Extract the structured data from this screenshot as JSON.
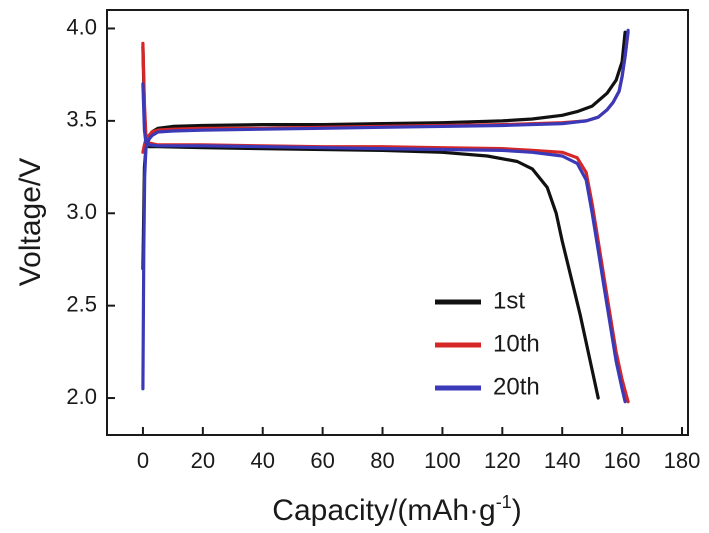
{
  "chart_data": {
    "type": "line",
    "xlabel": "Capacity/(mAh·g",
    "xlabel_sup": "-1",
    "xlabel_close": ")",
    "ylabel": "Voltage/V",
    "xlim": [
      -12,
      182
    ],
    "ylim": [
      1.8,
      4.1
    ],
    "x_ticks": [
      0,
      20,
      40,
      60,
      80,
      100,
      120,
      140,
      160,
      180
    ],
    "x_tick_labels": [
      "0",
      "20",
      "40",
      "60",
      "80",
      "100",
      "120",
      "140",
      "160",
      "180"
    ],
    "y_ticks": [
      2.0,
      2.5,
      3.0,
      3.5,
      4.0
    ],
    "y_tick_labels": [
      "2.0",
      "2.5",
      "3.0",
      "3.5",
      "4.0"
    ],
    "grid": false,
    "legend_position": "bottom-right",
    "series": [
      {
        "name": "1st",
        "color": "#111111",
        "segments": [
          {
            "phase": "charge",
            "x": [
              0,
              0.5,
              1,
              2,
              3,
              5,
              10,
              20,
              40,
              60,
              80,
              100,
              120,
              130,
              140,
              145,
              150,
              155,
              158,
              160,
              161
            ],
            "y": [
              2.7,
              3.25,
              3.35,
              3.4,
              3.44,
              3.46,
              3.47,
              3.475,
              3.48,
              3.48,
              3.485,
              3.49,
              3.5,
              3.51,
              3.53,
              3.55,
              3.58,
              3.65,
              3.72,
              3.82,
              3.98
            ]
          },
          {
            "phase": "discharge",
            "x": [
              0,
              0.5,
              1,
              2,
              5,
              20,
              40,
              60,
              80,
              100,
              115,
              125,
              130,
              135,
              138,
              140,
              143,
              146,
              148,
              150,
              152
            ],
            "y": [
              3.9,
              3.55,
              3.4,
              3.36,
              3.36,
              3.355,
              3.35,
              3.345,
              3.34,
              3.33,
              3.31,
              3.28,
              3.24,
              3.14,
              3.0,
              2.85,
              2.65,
              2.45,
              2.3,
              2.15,
              2.0
            ]
          }
        ]
      },
      {
        "name": "10th",
        "color": "#d62727",
        "segments": [
          {
            "phase": "charge",
            "x": [
              0,
              0.5,
              1,
              2,
              3,
              5,
              10,
              20,
              40,
              60,
              80,
              100,
              120,
              140,
              148,
              152,
              155,
              157,
              159,
              160,
              161,
              162
            ],
            "y": [
              3.33,
              3.37,
              3.4,
              3.42,
              3.44,
              3.45,
              3.455,
              3.46,
              3.46,
              3.465,
              3.47,
              3.475,
              3.48,
              3.49,
              3.5,
              3.52,
              3.56,
              3.6,
              3.66,
              3.74,
              3.85,
              3.98
            ]
          },
          {
            "phase": "discharge",
            "x": [
              0,
              0.5,
              1,
              2,
              5,
              20,
              40,
              60,
              80,
              100,
              120,
              130,
              140,
              145,
              148,
              150,
              152,
              154,
              156,
              158,
              160,
              162
            ],
            "y": [
              3.92,
              3.6,
              3.42,
              3.38,
              3.37,
              3.37,
              3.365,
              3.36,
              3.36,
              3.355,
              3.35,
              3.34,
              3.33,
              3.3,
              3.22,
              3.05,
              2.85,
              2.65,
              2.45,
              2.25,
              2.1,
              1.98
            ]
          }
        ]
      },
      {
        "name": "20th",
        "color": "#3a3ab8",
        "segments": [
          {
            "phase": "charge",
            "x": [
              0,
              0.3,
              0.6,
              1,
              2,
              3,
              5,
              10,
              20,
              40,
              60,
              80,
              100,
              120,
              140,
              148,
              152,
              155,
              157,
              159,
              160,
              161,
              162
            ],
            "y": [
              2.05,
              2.8,
              3.2,
              3.35,
              3.4,
              3.42,
              3.44,
              3.445,
              3.45,
              3.455,
              3.46,
              3.465,
              3.47,
              3.475,
              3.485,
              3.5,
              3.52,
              3.56,
              3.6,
              3.66,
              3.74,
              3.85,
              3.99
            ]
          },
          {
            "phase": "discharge",
            "x": [
              0,
              0.5,
              1,
              2,
              5,
              20,
              40,
              60,
              80,
              100,
              120,
              130,
              140,
              145,
              148,
              150,
              152,
              154,
              156,
              158,
              160,
              161
            ],
            "y": [
              3.7,
              3.45,
              3.38,
              3.37,
              3.365,
              3.365,
              3.36,
              3.355,
              3.35,
              3.345,
              3.34,
              3.33,
              3.31,
              3.27,
              3.18,
              3.0,
              2.8,
              2.6,
              2.4,
              2.2,
              2.05,
              1.98
            ]
          }
        ]
      }
    ]
  }
}
